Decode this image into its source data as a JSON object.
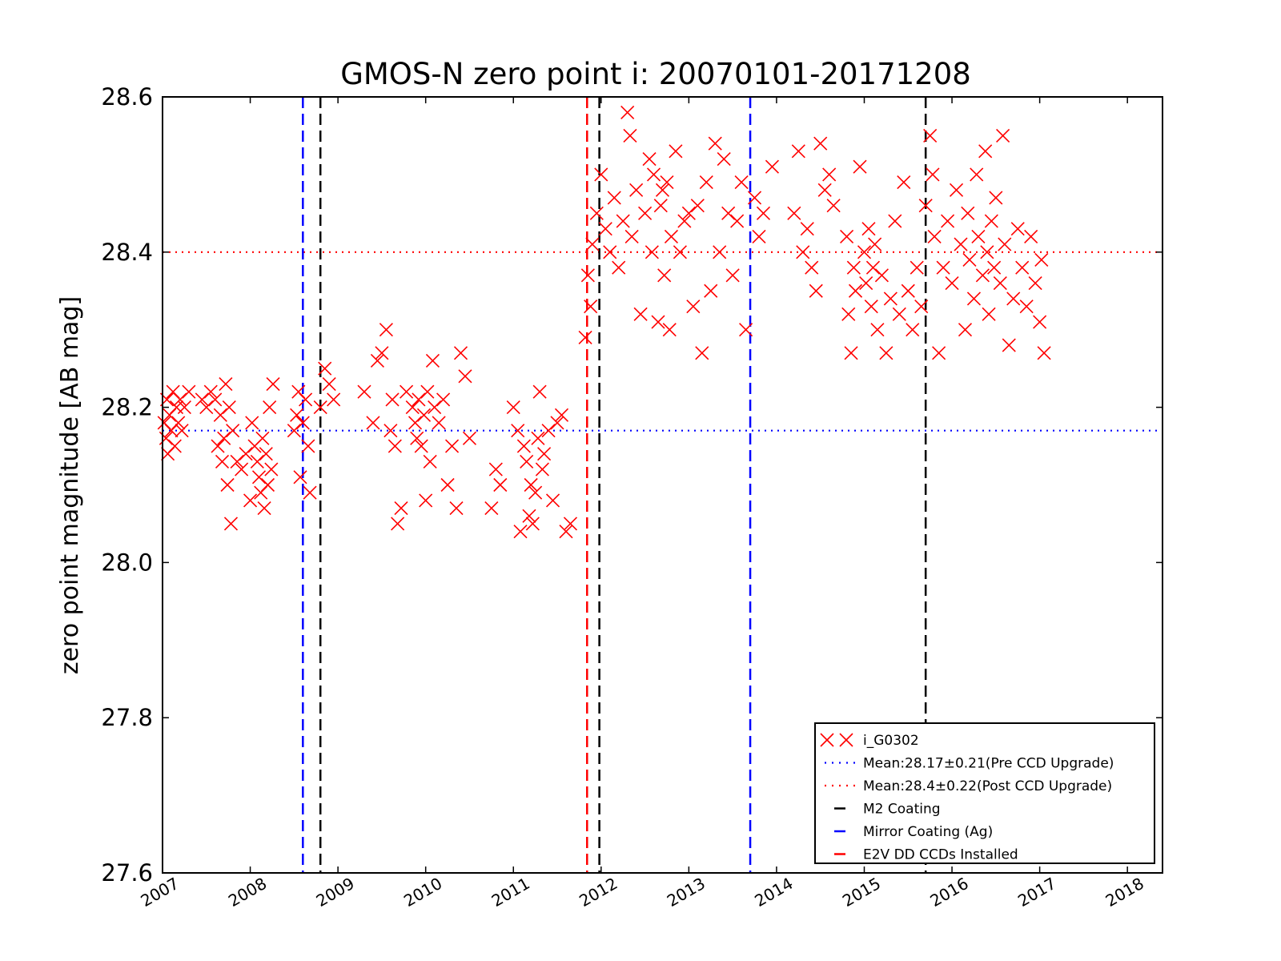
{
  "chart_data": {
    "type": "scatter",
    "title": "GMOS-N zero point i: 20070101-20171208",
    "xlabel": "",
    "ylabel": "zero point magnitude [AB mag]",
    "xlim": [
      2007.0,
      2018.4
    ],
    "ylim": [
      27.6,
      28.6
    ],
    "x_ticks": [
      "2007",
      "2008",
      "2009",
      "2010",
      "2011",
      "2012",
      "2013",
      "2014",
      "2015",
      "2016",
      "2017",
      "2018"
    ],
    "x_tick_values": [
      2007,
      2008,
      2009,
      2010,
      2011,
      2012,
      2013,
      2014,
      2015,
      2016,
      2017,
      2018
    ],
    "y_ticks": [
      "27.6",
      "27.8",
      "28.0",
      "28.2",
      "28.4",
      "28.6"
    ],
    "y_tick_values": [
      27.6,
      27.8,
      28.0,
      28.2,
      28.4,
      28.6
    ],
    "grid": false,
    "legend_position": "lower-right",
    "colors": {
      "points": "#ff0000",
      "pre_mean": "#0000ff",
      "post_mean": "#ff0000",
      "m2_coating": "#000000",
      "mirror_coating": "#0000ff",
      "e2v_ccds": "#ff0000"
    },
    "series": [
      {
        "name": "i_G0302",
        "marker": "x",
        "points": [
          [
            2007.02,
            28.18
          ],
          [
            2007.04,
            28.16
          ],
          [
            2007.05,
            28.21
          ],
          [
            2007.06,
            28.14
          ],
          [
            2007.08,
            28.19
          ],
          [
            2007.1,
            28.17
          ],
          [
            2007.12,
            28.22
          ],
          [
            2007.14,
            28.15
          ],
          [
            2007.16,
            28.2
          ],
          [
            2007.18,
            28.18
          ],
          [
            2007.2,
            28.21
          ],
          [
            2007.22,
            28.17
          ],
          [
            2007.25,
            28.2
          ],
          [
            2007.3,
            28.22
          ],
          [
            2007.45,
            28.21
          ],
          [
            2007.5,
            28.2
          ],
          [
            2007.55,
            28.22
          ],
          [
            2007.6,
            28.21
          ],
          [
            2007.63,
            28.15
          ],
          [
            2007.66,
            28.19
          ],
          [
            2007.68,
            28.13
          ],
          [
            2007.7,
            28.16
          ],
          [
            2007.72,
            28.23
          ],
          [
            2007.74,
            28.1
          ],
          [
            2007.76,
            28.2
          ],
          [
            2007.78,
            28.05
          ],
          [
            2007.8,
            28.17
          ],
          [
            2007.85,
            28.13
          ],
          [
            2007.9,
            28.12
          ],
          [
            2007.95,
            28.14
          ],
          [
            2008.0,
            28.08
          ],
          [
            2008.02,
            28.18
          ],
          [
            2008.05,
            28.15
          ],
          [
            2008.08,
            28.13
          ],
          [
            2008.1,
            28.11
          ],
          [
            2008.12,
            28.09
          ],
          [
            2008.14,
            28.16
          ],
          [
            2008.16,
            28.07
          ],
          [
            2008.18,
            28.14
          ],
          [
            2008.2,
            28.1
          ],
          [
            2008.22,
            28.2
          ],
          [
            2008.24,
            28.12
          ],
          [
            2008.26,
            28.23
          ],
          [
            2008.5,
            28.17
          ],
          [
            2008.53,
            28.19
          ],
          [
            2008.55,
            28.22
          ],
          [
            2008.57,
            28.11
          ],
          [
            2008.6,
            28.18
          ],
          [
            2008.63,
            28.21
          ],
          [
            2008.66,
            28.15
          ],
          [
            2008.68,
            28.09
          ],
          [
            2008.8,
            28.2
          ],
          [
            2008.85,
            28.25
          ],
          [
            2008.9,
            28.23
          ],
          [
            2008.95,
            28.21
          ],
          [
            2009.3,
            28.22
          ],
          [
            2009.4,
            28.18
          ],
          [
            2009.45,
            28.26
          ],
          [
            2009.5,
            28.27
          ],
          [
            2009.55,
            28.3
          ],
          [
            2009.6,
            28.17
          ],
          [
            2009.62,
            28.21
          ],
          [
            2009.65,
            28.15
          ],
          [
            2009.68,
            28.05
          ],
          [
            2009.72,
            28.07
          ],
          [
            2009.78,
            28.22
          ],
          [
            2009.85,
            28.2
          ],
          [
            2009.88,
            28.18
          ],
          [
            2009.9,
            28.16
          ],
          [
            2009.92,
            28.21
          ],
          [
            2009.95,
            28.15
          ],
          [
            2009.98,
            28.19
          ],
          [
            2010.0,
            28.08
          ],
          [
            2010.02,
            28.22
          ],
          [
            2010.05,
            28.13
          ],
          [
            2010.08,
            28.26
          ],
          [
            2010.1,
            28.2
          ],
          [
            2010.15,
            28.18
          ],
          [
            2010.2,
            28.21
          ],
          [
            2010.25,
            28.1
          ],
          [
            2010.3,
            28.15
          ],
          [
            2010.35,
            28.07
          ],
          [
            2010.4,
            28.27
          ],
          [
            2010.45,
            28.24
          ],
          [
            2010.5,
            28.16
          ],
          [
            2010.75,
            28.07
          ],
          [
            2010.8,
            28.12
          ],
          [
            2010.85,
            28.1
          ],
          [
            2011.0,
            28.2
          ],
          [
            2011.05,
            28.17
          ],
          [
            2011.08,
            28.04
          ],
          [
            2011.12,
            28.15
          ],
          [
            2011.15,
            28.13
          ],
          [
            2011.18,
            28.06
          ],
          [
            2011.2,
            28.1
          ],
          [
            2011.22,
            28.05
          ],
          [
            2011.25,
            28.09
          ],
          [
            2011.28,
            28.16
          ],
          [
            2011.3,
            28.22
          ],
          [
            2011.33,
            28.12
          ],
          [
            2011.35,
            28.14
          ],
          [
            2011.4,
            28.17
          ],
          [
            2011.45,
            28.08
          ],
          [
            2011.5,
            28.18
          ],
          [
            2011.55,
            28.19
          ],
          [
            2011.6,
            28.04
          ],
          [
            2011.65,
            28.05
          ],
          [
            2011.82,
            28.29
          ],
          [
            2011.85,
            28.37
          ],
          [
            2011.88,
            28.33
          ],
          [
            2011.9,
            28.41
          ],
          [
            2011.95,
            28.45
          ],
          [
            2012.0,
            28.5
          ],
          [
            2012.05,
            28.43
          ],
          [
            2012.1,
            28.4
          ],
          [
            2012.15,
            28.47
          ],
          [
            2012.2,
            28.38
          ],
          [
            2012.25,
            28.44
          ],
          [
            2012.3,
            28.58
          ],
          [
            2012.33,
            28.55
          ],
          [
            2012.35,
            28.42
          ],
          [
            2012.4,
            28.48
          ],
          [
            2012.45,
            28.32
          ],
          [
            2012.5,
            28.45
          ],
          [
            2012.55,
            28.52
          ],
          [
            2012.58,
            28.4
          ],
          [
            2012.6,
            28.5
          ],
          [
            2012.65,
            28.31
          ],
          [
            2012.68,
            28.46
          ],
          [
            2012.7,
            28.48
          ],
          [
            2012.72,
            28.37
          ],
          [
            2012.75,
            28.49
          ],
          [
            2012.78,
            28.3
          ],
          [
            2012.8,
            28.42
          ],
          [
            2012.85,
            28.53
          ],
          [
            2012.9,
            28.4
          ],
          [
            2012.95,
            28.44
          ],
          [
            2013.0,
            28.45
          ],
          [
            2013.05,
            28.33
          ],
          [
            2013.1,
            28.46
          ],
          [
            2013.15,
            28.27
          ],
          [
            2013.2,
            28.49
          ],
          [
            2013.25,
            28.35
          ],
          [
            2013.3,
            28.54
          ],
          [
            2013.35,
            28.4
          ],
          [
            2013.4,
            28.52
          ],
          [
            2013.45,
            28.45
          ],
          [
            2013.5,
            28.37
          ],
          [
            2013.55,
            28.44
          ],
          [
            2013.6,
            28.49
          ],
          [
            2013.65,
            28.3
          ],
          [
            2013.75,
            28.47
          ],
          [
            2013.8,
            28.42
          ],
          [
            2013.85,
            28.45
          ],
          [
            2013.95,
            28.51
          ],
          [
            2014.2,
            28.45
          ],
          [
            2014.25,
            28.53
          ],
          [
            2014.3,
            28.4
          ],
          [
            2014.35,
            28.43
          ],
          [
            2014.4,
            28.38
          ],
          [
            2014.45,
            28.35
          ],
          [
            2014.5,
            28.54
          ],
          [
            2014.55,
            28.48
          ],
          [
            2014.6,
            28.5
          ],
          [
            2014.65,
            28.46
          ],
          [
            2014.8,
            28.42
          ],
          [
            2014.82,
            28.32
          ],
          [
            2014.85,
            28.27
          ],
          [
            2014.88,
            28.38
          ],
          [
            2014.9,
            28.35
          ],
          [
            2014.95,
            28.51
          ],
          [
            2015.0,
            28.4
          ],
          [
            2015.02,
            28.36
          ],
          [
            2015.05,
            28.43
          ],
          [
            2015.08,
            28.33
          ],
          [
            2015.1,
            28.38
          ],
          [
            2015.12,
            28.41
          ],
          [
            2015.15,
            28.3
          ],
          [
            2015.2,
            28.37
          ],
          [
            2015.25,
            28.27
          ],
          [
            2015.3,
            28.34
          ],
          [
            2015.35,
            28.44
          ],
          [
            2015.4,
            28.32
          ],
          [
            2015.45,
            28.49
          ],
          [
            2015.5,
            28.35
          ],
          [
            2015.55,
            28.3
          ],
          [
            2015.6,
            28.38
          ],
          [
            2015.65,
            28.33
          ],
          [
            2015.7,
            28.46
          ],
          [
            2015.75,
            28.55
          ],
          [
            2015.78,
            28.5
          ],
          [
            2015.8,
            28.42
          ],
          [
            2015.85,
            28.27
          ],
          [
            2015.9,
            28.38
          ],
          [
            2015.95,
            28.44
          ],
          [
            2016.0,
            28.36
          ],
          [
            2016.05,
            28.48
          ],
          [
            2016.1,
            28.41
          ],
          [
            2016.15,
            28.3
          ],
          [
            2016.18,
            28.45
          ],
          [
            2016.2,
            28.39
          ],
          [
            2016.25,
            28.34
          ],
          [
            2016.28,
            28.5
          ],
          [
            2016.3,
            28.42
          ],
          [
            2016.35,
            28.37
          ],
          [
            2016.38,
            28.53
          ],
          [
            2016.4,
            28.4
          ],
          [
            2016.42,
            28.32
          ],
          [
            2016.45,
            28.44
          ],
          [
            2016.48,
            28.38
          ],
          [
            2016.5,
            28.47
          ],
          [
            2016.55,
            28.36
          ],
          [
            2016.58,
            28.55
          ],
          [
            2016.6,
            28.41
          ],
          [
            2016.65,
            28.28
          ],
          [
            2016.7,
            28.34
          ],
          [
            2016.75,
            28.43
          ],
          [
            2016.8,
            28.38
          ],
          [
            2016.85,
            28.33
          ],
          [
            2016.9,
            28.42
          ],
          [
            2016.95,
            28.36
          ],
          [
            2017.0,
            28.31
          ],
          [
            2017.02,
            28.39
          ],
          [
            2017.05,
            28.27
          ]
        ]
      },
      {
        "name": "Mean:28.17±0.21(Pre CCD Upgrade)",
        "type": "hline",
        "y": 28.17,
        "style": "dotted"
      },
      {
        "name": "Mean:28.4±0.22(Post CCD Upgrade)",
        "type": "hline",
        "y": 28.4,
        "style": "dotted"
      },
      {
        "name": "M2 Coating",
        "type": "vline",
        "x": [
          2008.8,
          2011.98,
          2015.7
        ],
        "style": "dashed"
      },
      {
        "name": "Mirror Coating (Ag)",
        "type": "vline",
        "x": [
          2008.6,
          2013.7
        ],
        "style": "dashed"
      },
      {
        "name": "E2V DD CCDs Installed",
        "type": "vline",
        "x": [
          2011.84
        ],
        "style": "dashed"
      }
    ],
    "legend": [
      {
        "label": "i_G0302",
        "kind": "marker",
        "color": "#ff0000"
      },
      {
        "label": "Mean:28.17±0.21(Pre CCD Upgrade)",
        "kind": "dotted",
        "color": "#0000ff"
      },
      {
        "label": "Mean:28.4±0.22(Post CCD Upgrade)",
        "kind": "dotted",
        "color": "#ff0000"
      },
      {
        "label": "M2 Coating",
        "kind": "dashed",
        "color": "#000000"
      },
      {
        "label": "Mirror Coating (Ag)",
        "kind": "dashed",
        "color": "#0000ff"
      },
      {
        "label": "E2V DD CCDs Installed",
        "kind": "dashed",
        "color": "#ff0000"
      }
    ]
  }
}
